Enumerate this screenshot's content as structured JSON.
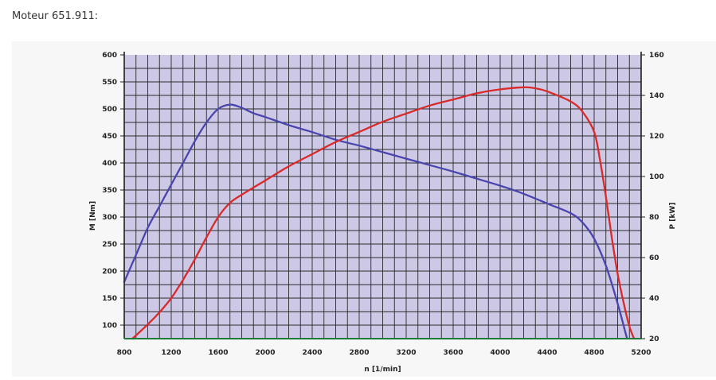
{
  "page": {
    "title": "Moteur 651.911:"
  },
  "colors": {
    "plot_background": "#cdc8e6",
    "grid": "#2a2a2a",
    "axis": "#1f1f1f",
    "torque_line": "#4a45ad",
    "power_line": "#d92a2a",
    "panel_background": "#f7f7f7"
  },
  "chart_data": {
    "type": "line",
    "title": "",
    "xlabel": "n [1/min]",
    "ylabel_left": "M [Nm]",
    "ylabel_right": "P [kW]",
    "xlim": [
      800,
      5200
    ],
    "ylim_left": [
      75,
      600
    ],
    "ylim_right": [
      20,
      160
    ],
    "x_ticks": [
      800,
      1200,
      1600,
      2000,
      2400,
      2800,
      3200,
      3600,
      4000,
      4400,
      4800,
      5200
    ],
    "y_left_ticks": [
      100,
      150,
      200,
      250,
      300,
      350,
      400,
      450,
      500,
      550,
      600
    ],
    "y_right_ticks": [
      20,
      40,
      60,
      80,
      100,
      120,
      140,
      160
    ],
    "grid": true,
    "series": [
      {
        "key": "torque",
        "axis": "left",
        "x": [
          800,
          900,
          1000,
          1100,
          1200,
          1300,
          1400,
          1500,
          1600,
          1700,
          1800,
          1900,
          2000,
          2200,
          2400,
          2600,
          2800,
          3000,
          3200,
          3400,
          3600,
          3800,
          4000,
          4200,
          4400,
          4600,
          4700,
          4800,
          4900,
          5000,
          5080
        ],
        "values": [
          180,
          230,
          280,
          320,
          360,
          400,
          440,
          475,
          500,
          508,
          502,
          492,
          485,
          470,
          457,
          443,
          432,
          420,
          408,
          396,
          384,
          371,
          358,
          343,
          325,
          307,
          290,
          260,
          210,
          140,
          75
        ]
      },
      {
        "key": "power",
        "axis": "right",
        "x": [
          870,
          1000,
          1100,
          1200,
          1300,
          1400,
          1500,
          1600,
          1700,
          1800,
          2000,
          2200,
          2400,
          2600,
          2800,
          3000,
          3200,
          3400,
          3600,
          3800,
          4000,
          4200,
          4300,
          4400,
          4600,
          4700,
          4800,
          4850,
          4900,
          4950,
          5000,
          5050,
          5100,
          5140
        ],
        "values": [
          20,
          27,
          33,
          40,
          49,
          59,
          70,
          80,
          87,
          91,
          98,
          105,
          111,
          117,
          122,
          127,
          131,
          135,
          138,
          141,
          143,
          144,
          143.5,
          142,
          137,
          132,
          122,
          108,
          90,
          70,
          52,
          38,
          26,
          20
        ]
      }
    ]
  }
}
